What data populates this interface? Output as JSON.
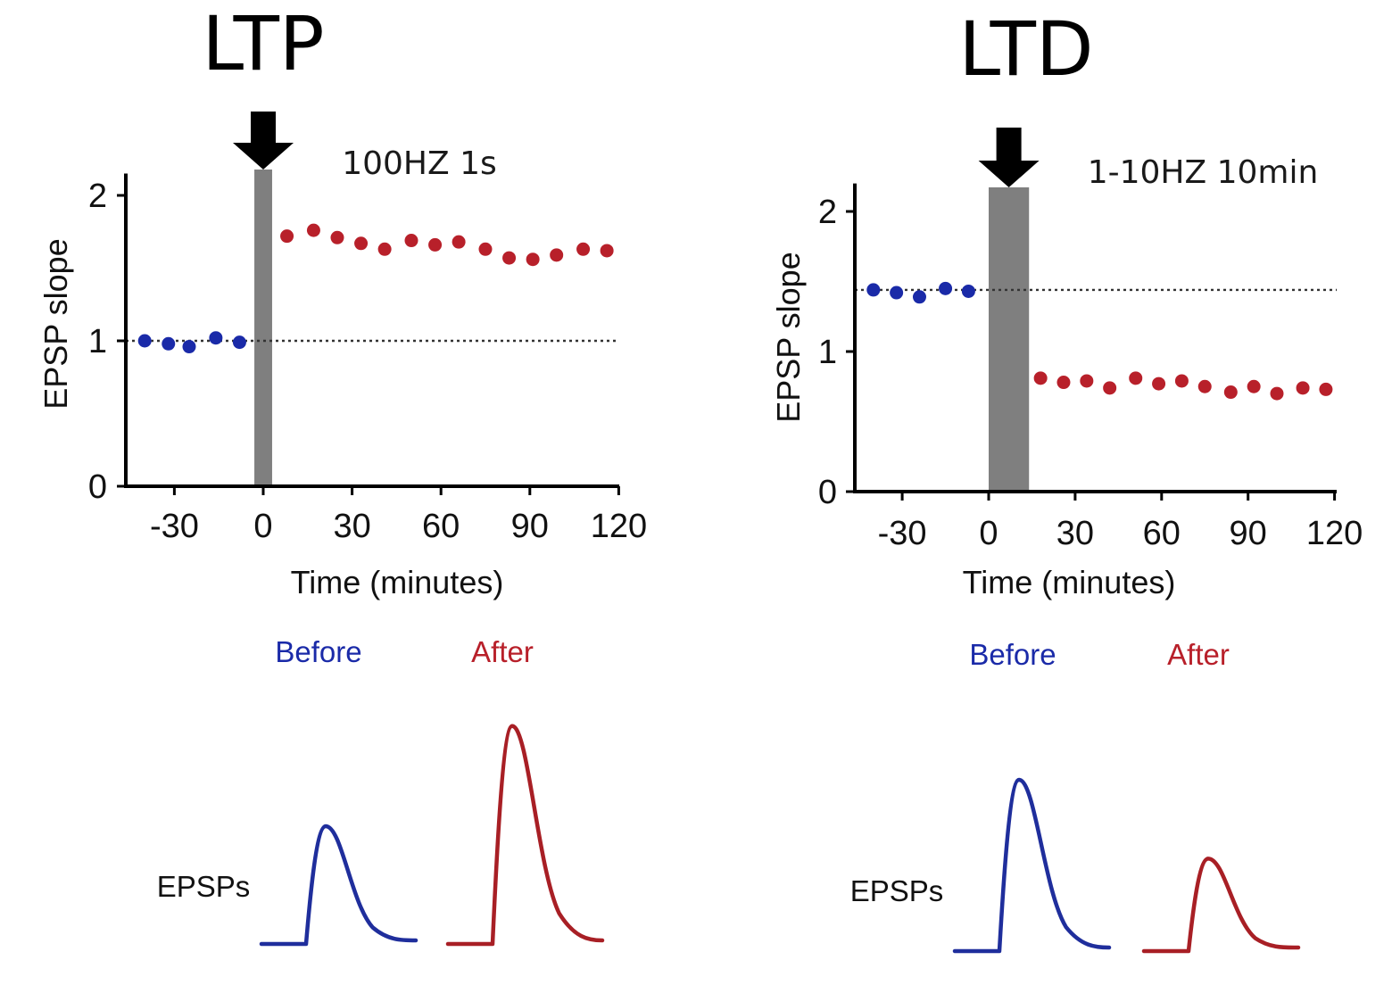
{
  "colors": {
    "before": "#1a2aa8",
    "after": "#b8202a",
    "before_trace": "#1f2e9c",
    "after_trace": "#a81f25",
    "stim_bar": "#7f7f7f"
  },
  "icons": {
    "stimulus": "down-arrow-icon"
  },
  "chart_data": [
    {
      "type": "scatter",
      "title": "LTP",
      "annotation": "100HZ 1s",
      "xlabel": "Time (minutes)",
      "ylabel": "EPSP slope",
      "xlim": [
        -45,
        120
      ],
      "ylim": [
        0,
        2.15
      ],
      "xticks": [
        -30,
        0,
        30,
        60,
        90,
        120
      ],
      "yticks": [
        0,
        1,
        2
      ],
      "baseline_y": 1.0,
      "stimulus_window": [
        -3,
        3
      ],
      "series": [
        {
          "name": "Before",
          "color_key": "before",
          "x": [
            -40,
            -32,
            -25,
            -16,
            -8
          ],
          "y": [
            1.0,
            0.98,
            0.96,
            1.02,
            0.99
          ]
        },
        {
          "name": "After",
          "color_key": "after",
          "x": [
            8,
            17,
            25,
            33,
            41,
            50,
            58,
            66,
            75,
            83,
            91,
            99,
            108,
            116
          ],
          "y": [
            1.72,
            1.76,
            1.71,
            1.67,
            1.63,
            1.69,
            1.66,
            1.68,
            1.63,
            1.57,
            1.56,
            1.59,
            1.63,
            1.62
          ]
        }
      ],
      "epsps": {
        "label": "EPSPs",
        "before_label": "Before",
        "after_label": "After",
        "before_amplitude": 1.0,
        "after_amplitude": 1.85
      }
    },
    {
      "type": "scatter",
      "title": "LTD",
      "annotation": "1-10HZ 10min",
      "xlabel": "Time (minutes)",
      "ylabel": "EPSP slope",
      "xlim": [
        -45,
        120
      ],
      "ylim": [
        0,
        2.2
      ],
      "xticks": [
        -30,
        0,
        30,
        60,
        90,
        120
      ],
      "yticks": [
        0,
        1,
        2
      ],
      "baseline_y": 1.44,
      "stimulus_window": [
        0,
        14
      ],
      "series": [
        {
          "name": "Before",
          "color_key": "before",
          "x": [
            -40,
            -32,
            -24,
            -15,
            -7
          ],
          "y": [
            1.44,
            1.42,
            1.39,
            1.45,
            1.43
          ]
        },
        {
          "name": "After",
          "color_key": "after",
          "x": [
            18,
            26,
            34,
            42,
            51,
            59,
            67,
            75,
            84,
            92,
            100,
            109,
            117
          ],
          "y": [
            0.81,
            0.78,
            0.79,
            0.74,
            0.81,
            0.77,
            0.79,
            0.75,
            0.71,
            0.75,
            0.7,
            0.74,
            0.73
          ]
        }
      ],
      "epsps": {
        "label": "EPSPs",
        "before_label": "Before",
        "after_label": "After",
        "before_amplitude": 1.0,
        "after_amplitude": 0.54
      }
    }
  ]
}
